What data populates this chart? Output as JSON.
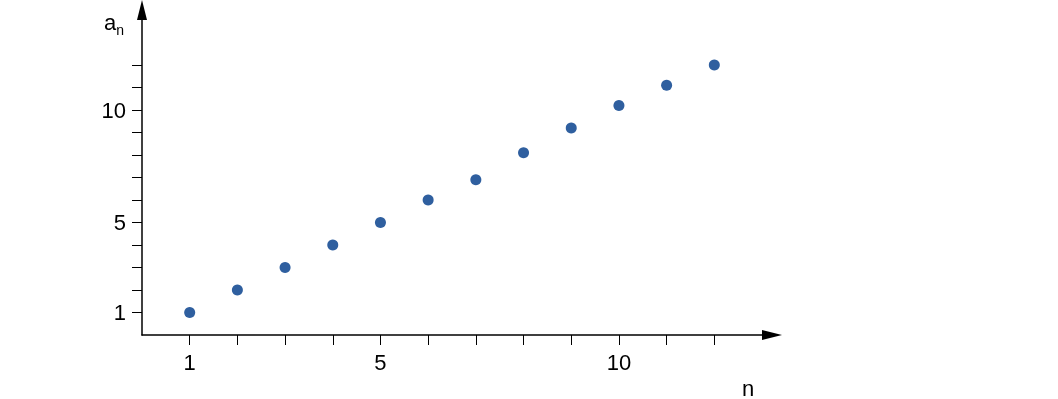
{
  "chart_data": {
    "type": "scatter",
    "xlabel": "n",
    "ylabel": "a$_{n}$",
    "x": [
      1,
      2,
      3,
      4,
      5,
      6,
      7,
      8,
      9,
      10,
      11,
      12
    ],
    "values": [
      1,
      2,
      3,
      4,
      5,
      6,
      6.9,
      8.1,
      9.2,
      10.2,
      11.1,
      12
    ],
    "color": "#2f5f9f",
    "marker": "circle",
    "grid": false,
    "xlim": [
      0,
      13
    ],
    "ylim": [
      0,
      14
    ],
    "xticks": [
      1,
      {
        "value": 2,
        "label": null
      },
      {
        "value": 3,
        "label": null
      },
      {
        "value": 4,
        "label": null
      },
      5,
      {
        "value": 6,
        "label": null
      },
      {
        "value": 7,
        "label": null
      },
      {
        "value": 8,
        "label": null
      },
      {
        "value": 9,
        "label": null
      },
      10,
      {
        "value": 11,
        "label": null
      },
      {
        "value": 12,
        "label": null
      }
    ],
    "yticks": [
      1,
      {
        "value": 2,
        "label": null
      },
      {
        "value": 3,
        "label": null
      },
      {
        "value": 4,
        "label": null
      },
      5,
      {
        "value": 6,
        "label": null
      },
      {
        "value": 7,
        "label": null
      },
      {
        "value": 8,
        "label": null
      },
      {
        "value": 9,
        "label": null
      },
      10,
      {
        "value": 11,
        "label": null
      },
      {
        "value": 12,
        "label": null
      }
    ]
  }
}
